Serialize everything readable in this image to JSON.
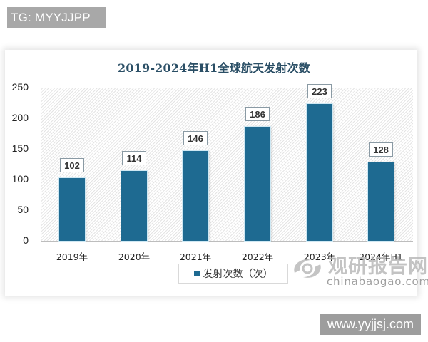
{
  "badges": {
    "top_left": "TG: MYYJJPP",
    "bottom_right": "www.yyjjsj.com"
  },
  "watermark": {
    "cn": "观研报告网",
    "en": "chinabaogao.com",
    "icon": "swirl-logo-icon"
  },
  "legend": {
    "label": "发射次数（次）",
    "color": "#1e6a91"
  },
  "y_ticks": [
    "0",
    "50",
    "100",
    "150",
    "200",
    "250"
  ],
  "colors": {
    "bar": "#1e6a91",
    "title": "#2b4f66"
  },
  "chart_data": {
    "type": "bar",
    "title": "2019-2024年H1全球航天发射次数",
    "categories": [
      "2019年",
      "2020年",
      "2021年",
      "2022年",
      "2023年",
      "2024年H1"
    ],
    "series": [
      {
        "name": "发射次数（次）",
        "values": [
          102,
          114,
          146,
          186,
          223,
          128
        ]
      }
    ],
    "values": [
      102,
      114,
      146,
      186,
      223,
      128
    ],
    "labels": [
      "102",
      "114",
      "146",
      "186",
      "223",
      "128"
    ],
    "xlabel": "",
    "ylabel": "",
    "ylim": [
      0,
      250
    ],
    "yticks": [
      0,
      50,
      100,
      150,
      200,
      250
    ],
    "grid": false,
    "legend_position": "bottom",
    "data_labels": true
  }
}
